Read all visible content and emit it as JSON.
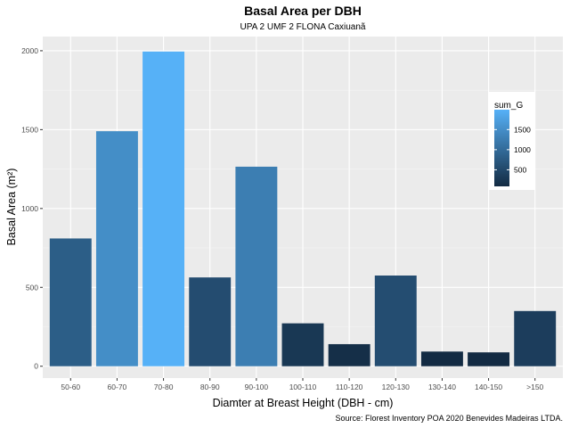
{
  "chart_data": {
    "type": "bar",
    "title": "Basal Area per DBH",
    "subtitle": "UPA 2 UMF 2 FLONA Caxiuanã",
    "xlabel": "Diamter at Breast Height (DBH - cm)",
    "ylabel": "Basal Area (m²)",
    "caption": "Source: Florest Inventory POA 2020 Benevides Madeiras LTDA.",
    "categories": [
      "50-60",
      "60-70",
      "70-80",
      "80-90",
      "90-100",
      "100-110",
      "110-120",
      "120-130",
      "130-140",
      "140-150",
      ">150"
    ],
    "values": [
      810,
      1490,
      1995,
      563,
      1265,
      272,
      140,
      575,
      93,
      88,
      350
    ],
    "ylim": [
      -75,
      2090
    ],
    "yticks": [
      0,
      500,
      1000,
      1500,
      2000
    ],
    "ytick_labels": [
      "0",
      "500",
      "1000",
      "1500",
      "2000"
    ],
    "grid": true,
    "fill_scale": {
      "low_color": "#132B43",
      "high_color": "#56B1F7",
      "min": 88,
      "max": 1995
    },
    "legend": {
      "title": "sum_G",
      "position": "right",
      "ticks": [
        500,
        1000,
        1500
      ],
      "tick_labels": [
        "500",
        "1000",
        "1500"
      ]
    },
    "colors": {
      "panel": "#EBEBEB",
      "grid_major": "#FFFFFF",
      "grid_minor": "#F5F5F5"
    }
  }
}
